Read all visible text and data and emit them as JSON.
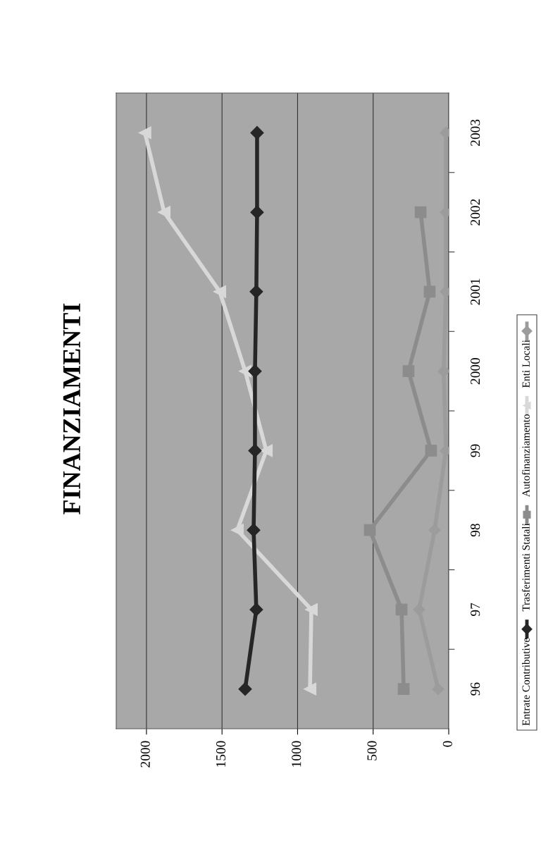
{
  "chart_data": {
    "type": "line",
    "title": "FINANZIAMENTI",
    "orientation": "horizontal",
    "categories": [
      "2003",
      "2002",
      "2001",
      "2000",
      "99",
      "98",
      "97",
      "96"
    ],
    "series": [
      {
        "name": "Entrate Contributive",
        "color": "#262626",
        "marker": "diamond",
        "values": [
          1268,
          1268,
          1273,
          1282,
          1282,
          1291,
          1273,
          1347
        ]
      },
      {
        "name": "Trasferimenti Statali",
        "color": "#8c8c8c",
        "marker": "square",
        "values": [
          null,
          186,
          126,
          266,
          117,
          522,
          312,
          298
        ]
      },
      {
        "name": "Autofinanziamento",
        "color": "#d8d8d8",
        "marker": "triangle",
        "values": [
          2010,
          1883,
          1515,
          1347,
          1207,
          1399,
          909,
          918
        ]
      },
      {
        "name": "Enti Locali",
        "color": "#9c9c9c",
        "marker": "diamond",
        "values": [
          19,
          19,
          19,
          33,
          19,
          93,
          196,
          70
        ]
      }
    ],
    "xlim": [
      2200,
      0
    ],
    "xticks": [
      0,
      500,
      1000,
      1500,
      2000
    ],
    "grid": "x",
    "legend": "right"
  }
}
